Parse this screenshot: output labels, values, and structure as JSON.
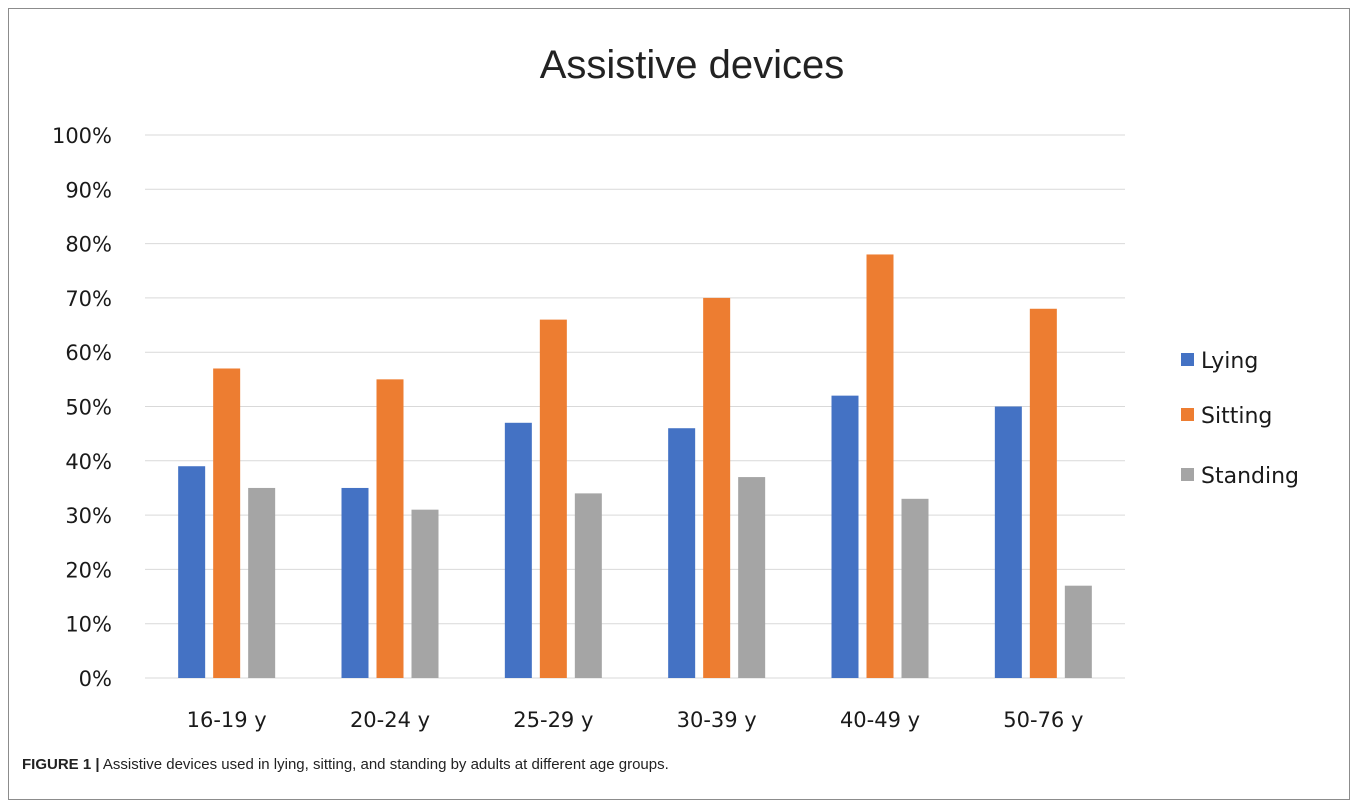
{
  "chart_data": {
    "type": "bar",
    "title": "Assistive devices",
    "categories": [
      "16-19 y",
      "20-24 y",
      "25-29 y",
      "30-39 y",
      "40-49 y",
      "50-76 y"
    ],
    "series": [
      {
        "name": "Lying",
        "color": "#4472c4",
        "values": [
          39,
          35,
          47,
          46,
          52,
          50
        ]
      },
      {
        "name": "Sitting",
        "color": "#ed7d31",
        "values": [
          57,
          55,
          66,
          70,
          78,
          68
        ]
      },
      {
        "name": "Standing",
        "color": "#a5a5a5",
        "values": [
          35,
          31,
          34,
          37,
          33,
          17
        ]
      }
    ],
    "ylim": [
      0,
      100
    ],
    "yticks": [
      "0%",
      "10%",
      "20%",
      "30%",
      "40%",
      "50%",
      "60%",
      "70%",
      "80%",
      "90%",
      "100%"
    ],
    "grid": true,
    "legend": "right"
  },
  "caption": {
    "label": "FIGURE 1 |",
    "text": " Assistive devices used in lying, sitting, and standing by adults at different age groups."
  }
}
